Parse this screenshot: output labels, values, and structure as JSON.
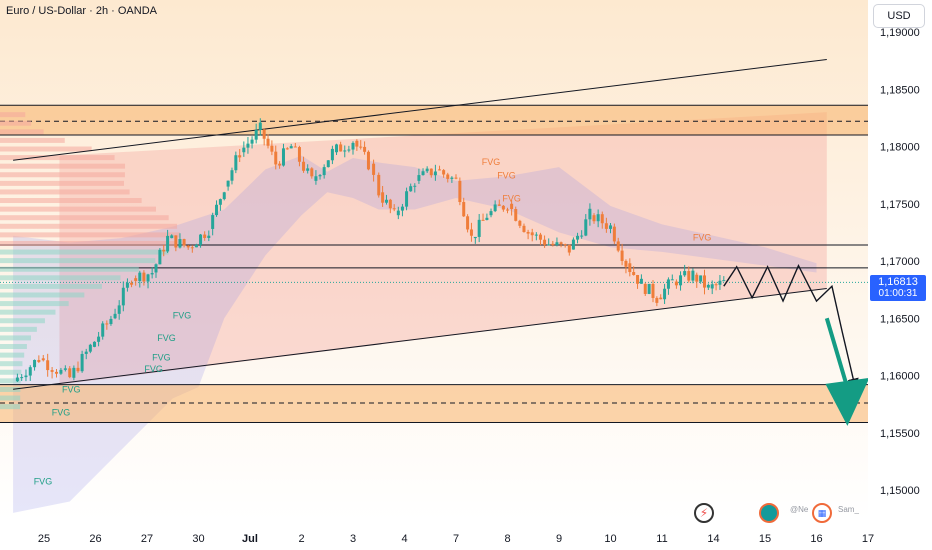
{
  "header": {
    "title": "Euro / US-Dollar · 2h · OANDA",
    "currency": "USD"
  },
  "price": {
    "current": "1,16813",
    "countdown": "01:00:31"
  },
  "watermarks": {
    "left_text": "@Ne",
    "right_text": "Sam_"
  },
  "colors": {
    "up": "#26a69a",
    "down": "#ef7d3a",
    "zone": "#f7b36a",
    "ichimoku": "#8c8ce6",
    "projection": "#149c84",
    "price_tag": "#2962ff",
    "area": "#f6b1a8"
  },
  "icons": [
    "bolt-icon",
    "globe-icon",
    "flag-icon"
  ],
  "chart_data": {
    "type": "candlestick",
    "title": "Euro / US-Dollar · 2h · OANDA",
    "ylim": [
      1.1492,
      1.1924
    ],
    "x_range": [
      0,
      17.5
    ],
    "y_ticks": [
      "1,19000",
      "1,18500",
      "1,18000",
      "1,17500",
      "1,17000",
      "1,16500",
      "1,16000",
      "1,15500",
      "1,15000"
    ],
    "y_tick_values": [
      1.19,
      1.185,
      1.18,
      1.175,
      1.17,
      1.165,
      1.16,
      1.155,
      1.15
    ],
    "x_ticks": [
      "25",
      "26",
      "27",
      "30",
      "Jul",
      "2",
      "3",
      "4",
      "7",
      "8",
      "9",
      "10",
      "11",
      "14",
      "15",
      "16",
      "17"
    ],
    "x_tick_positions": [
      0,
      1,
      2,
      3,
      4,
      5,
      6,
      7,
      8,
      9,
      10,
      11,
      12,
      13,
      14,
      15,
      16
    ],
    "price_path": [
      [
        -0.6,
        1.1595
      ],
      [
        -0.1,
        1.1615
      ],
      [
        0.5,
        1.1598
      ],
      [
        0.9,
        1.1625
      ],
      [
        1.3,
        1.165
      ],
      [
        1.7,
        1.1685
      ],
      [
        2.1,
        1.169
      ],
      [
        2.4,
        1.172
      ],
      [
        2.8,
        1.1712
      ],
      [
        3.2,
        1.1728
      ],
      [
        3.5,
        1.1765
      ],
      [
        3.8,
        1.1795
      ],
      [
        4.2,
        1.1815
      ],
      [
        4.5,
        1.1785
      ],
      [
        4.8,
        1.18
      ],
      [
        5.2,
        1.177
      ],
      [
        5.6,
        1.1795
      ],
      [
        6.0,
        1.1805
      ],
      [
        6.3,
        1.1785
      ],
      [
        6.5,
        1.176
      ],
      [
        6.8,
        1.174
      ],
      [
        7.2,
        1.177
      ],
      [
        7.6,
        1.178
      ],
      [
        8.0,
        1.177
      ],
      [
        8.3,
        1.172
      ],
      [
        8.6,
        1.174
      ],
      [
        9.0,
        1.175
      ],
      [
        9.4,
        1.1725
      ],
      [
        9.8,
        1.1715
      ],
      [
        10.2,
        1.171
      ],
      [
        10.6,
        1.174
      ],
      [
        11.0,
        1.173
      ],
      [
        11.3,
        1.1698
      ],
      [
        11.6,
        1.168
      ],
      [
        11.9,
        1.1668
      ],
      [
        12.2,
        1.1682
      ],
      [
        12.6,
        1.1688
      ],
      [
        12.9,
        1.1676
      ],
      [
        13.2,
        1.1681
      ]
    ],
    "resistance_zone": [
      1.181,
      1.1836
    ],
    "resistance_mid": 1.1822,
    "support_zone": [
      1.1559,
      1.1592
    ],
    "support_mid": 1.1576,
    "horizontal_lines": [
      1.1714,
      1.1694
    ],
    "current_price": 1.16813,
    "channel": {
      "upper": [
        [
          -0.6,
          1.1788
        ],
        [
          15.2,
          1.1876
        ]
      ],
      "lower": [
        [
          -0.6,
          1.1588
        ],
        [
          15.2,
          1.1676
        ]
      ]
    },
    "projection_path": [
      [
        13.2,
        1.1678
      ],
      [
        13.45,
        1.1695
      ],
      [
        13.75,
        1.1668
      ],
      [
        14.05,
        1.1695
      ],
      [
        14.35,
        1.1665
      ],
      [
        14.65,
        1.1696
      ],
      [
        15.0,
        1.1665
      ],
      [
        15.3,
        1.1678
      ],
      [
        15.5,
        1.1638
      ],
      [
        15.75,
        1.159
      ]
    ],
    "projection_arrow": {
      "from": [
        15.2,
        1.165
      ],
      "to": [
        15.6,
        1.1556
      ]
    },
    "ichimoku_cloud": {
      "top": [
        [
          -0.6,
          1.1722
        ],
        [
          0.5,
          1.1716
        ],
        [
          1.5,
          1.172
        ],
        [
          2.5,
          1.173
        ],
        [
          3.5,
          1.1745
        ],
        [
          4.3,
          1.178
        ],
        [
          5.0,
          1.1792
        ],
        [
          5.5,
          1.1778
        ],
        [
          6.0,
          1.179
        ],
        [
          6.5,
          1.1786
        ],
        [
          7.2,
          1.1782
        ],
        [
          8.0,
          1.177
        ],
        [
          9.0,
          1.1774
        ],
        [
          10.0,
          1.1782
        ],
        [
          11.0,
          1.1748
        ],
        [
          12.0,
          1.1732
        ],
        [
          13.0,
          1.1722
        ],
        [
          14.0,
          1.1712
        ],
        [
          15.0,
          1.1698
        ]
      ],
      "bottom": [
        [
          -0.6,
          1.148
        ],
        [
          0.5,
          1.149
        ],
        [
          1.5,
          1.1535
        ],
        [
          2.5,
          1.158
        ],
        [
          3.0,
          1.159
        ],
        [
          3.5,
          1.165
        ],
        [
          4.3,
          1.1705
        ],
        [
          5.0,
          1.174
        ],
        [
          5.5,
          1.176
        ],
        [
          6.0,
          1.1755
        ],
        [
          6.5,
          1.1745
        ],
        [
          7.2,
          1.1745
        ],
        [
          8.0,
          1.1755
        ],
        [
          9.0,
          1.1745
        ],
        [
          10.0,
          1.1725
        ],
        [
          11.0,
          1.1712
        ],
        [
          12.0,
          1.1708
        ],
        [
          13.0,
          1.1702
        ],
        [
          14.0,
          1.1696
        ],
        [
          15.0,
          1.169
        ]
      ]
    },
    "fvg_labels": [
      {
        "text": "FVG",
        "x": 8.5,
        "y": 1.1784,
        "color": "down"
      },
      {
        "text": "FVG",
        "x": 8.8,
        "y": 1.1772,
        "color": "down"
      },
      {
        "text": "FVG",
        "x": 8.9,
        "y": 1.1752,
        "color": "down"
      },
      {
        "text": "FVG",
        "x": 12.6,
        "y": 1.1718,
        "color": "down"
      },
      {
        "text": "FVG",
        "x": 2.5,
        "y": 1.165,
        "color": "up"
      },
      {
        "text": "FVG",
        "x": 2.2,
        "y": 1.163,
        "color": "up"
      },
      {
        "text": "FVG",
        "x": 2.1,
        "y": 1.1613,
        "color": "up"
      },
      {
        "text": "FVG",
        "x": 1.95,
        "y": 1.1603,
        "color": "up"
      },
      {
        "text": "FVG",
        "x": 0.35,
        "y": 1.1585,
        "color": "up"
      },
      {
        "text": "FVG",
        "x": 0.15,
        "y": 1.1565,
        "color": "up"
      },
      {
        "text": "FVG",
        "x": -0.2,
        "y": 1.1505,
        "color": "up"
      }
    ]
  }
}
